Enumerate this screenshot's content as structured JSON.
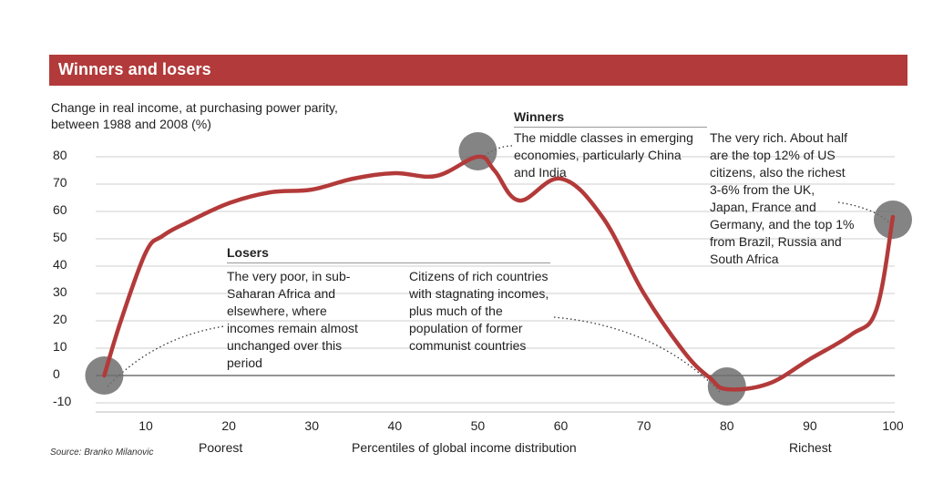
{
  "header": {
    "title": "Winners and losers"
  },
  "subtitle": "Change in real income, at purchasing power parity, between 1988 and 2008 (%)",
  "source": "Source: Branko Milanovic",
  "annotations": {
    "winners_head": "Winners",
    "winners_text": "The middle classes in emerging economies, particularly China and India",
    "losers_head": "Losers",
    "losers_text": "The very poor, in sub-Saharan Africa and elsewhere, where incomes remain almost unchanged over this period",
    "rich_countries_text": "Citizens of rich countries with stagnating incomes, plus much of the population of former communist countries",
    "very_rich_text": "The very rich. About half are the top 12% of US citizens, also the richest 3-6% from the UK, Japan, France and Germany, and the top 1% from Brazil, Russia and South Africa"
  },
  "axis_words": {
    "poorest": "Poorest",
    "xlabel": "Percentiles of global income distribution",
    "richest": "Richest"
  },
  "colors": {
    "title_bar": "#b33a3a",
    "line": "#b33a3a",
    "marker": "#6e6e6e"
  },
  "chart_data": {
    "type": "line",
    "xlim": [
      5,
      100
    ],
    "ylim": [
      -10,
      80
    ],
    "x_ticks": [
      10,
      20,
      30,
      40,
      50,
      60,
      70,
      80,
      90,
      100
    ],
    "y_ticks": [
      80,
      70,
      60,
      50,
      40,
      30,
      20,
      10,
      0,
      -10
    ],
    "grid": "horizontal",
    "series": [
      {
        "x": [
          5,
          7,
          10,
          12,
          15,
          20,
          25,
          30,
          35,
          40,
          45,
          50,
          52,
          55,
          60,
          65,
          70,
          75,
          78,
          80,
          85,
          90,
          95,
          98,
          100
        ],
        "values": [
          0,
          20,
          45,
          51,
          56,
          63,
          67,
          68,
          72,
          74,
          73,
          80,
          75,
          64,
          72,
          58,
          30,
          8,
          -1,
          -5,
          -3,
          6,
          15,
          24,
          58
        ]
      }
    ],
    "markers": [
      {
        "x": 5,
        "y": 0
      },
      {
        "x": 50,
        "y": 82
      },
      {
        "x": 80,
        "y": -4
      },
      {
        "x": 100,
        "y": 57
      }
    ]
  }
}
